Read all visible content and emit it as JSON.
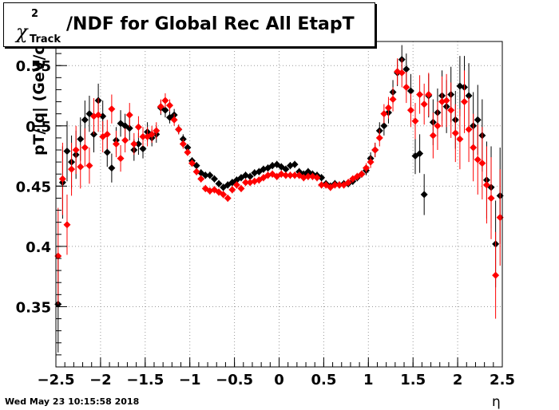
{
  "title": {
    "prefix": "χ",
    "superscript": "2",
    "subscript": "Track",
    "text": "/NDF for Global Rec All EtapT"
  },
  "timestamp": "Wed May 23 10:15:58 2018",
  "chart_data": {
    "type": "scatter",
    "title": "χ2 Track /NDF for Global Rec All EtapT",
    "xlabel": "η",
    "ylabel": "pT/|q| (GeV/c",
    "xlim": [
      -2.5,
      2.5
    ],
    "ylim": [
      0.3,
      0.57
    ],
    "grid": true,
    "x_ticks": [
      -2.5,
      -2,
      -1.5,
      -1,
      -0.5,
      0,
      0.5,
      1,
      1.5,
      2,
      2.5
    ],
    "x_tick_labels": [
      "−2.5",
      "−2",
      "−1.5",
      "−1",
      "−0.5",
      "0",
      "0.5",
      "1",
      "1.5",
      "2",
      "2.5"
    ],
    "y_ticks": [
      0.35,
      0.4,
      0.45,
      0.5,
      0.55
    ],
    "y_tick_labels": [
      "0.35",
      "0.4",
      "0.45",
      "0.5",
      "0.55"
    ],
    "series": [
      {
        "color": "#000000",
        "x": [
          -2.475,
          -2.425,
          -2.375,
          -2.325,
          -2.275,
          -2.225,
          -2.175,
          -2.125,
          -2.075,
          -2.025,
          -1.975,
          -1.925,
          -1.875,
          -1.825,
          -1.775,
          -1.725,
          -1.675,
          -1.625,
          -1.575,
          -1.525,
          -1.475,
          -1.425,
          -1.375,
          -1.325,
          -1.275,
          -1.225,
          -1.175,
          -1.125,
          -1.075,
          -1.025,
          -0.975,
          -0.925,
          -0.875,
          -0.825,
          -0.775,
          -0.725,
          -0.675,
          -0.625,
          -0.575,
          -0.525,
          -0.475,
          -0.425,
          -0.375,
          -0.325,
          -0.275,
          -0.225,
          -0.175,
          -0.125,
          -0.075,
          -0.025,
          0.025,
          0.075,
          0.125,
          0.175,
          0.225,
          0.275,
          0.325,
          0.375,
          0.425,
          0.475,
          0.525,
          0.575,
          0.625,
          0.675,
          0.725,
          0.775,
          0.825,
          0.875,
          0.925,
          0.975,
          1.025,
          1.075,
          1.125,
          1.175,
          1.225,
          1.275,
          1.325,
          1.375,
          1.425,
          1.475,
          1.525,
          1.575,
          1.625,
          1.675,
          1.725,
          1.775,
          1.825,
          1.875,
          1.925,
          1.975,
          2.025,
          2.075,
          2.125,
          2.175,
          2.225,
          2.275,
          2.325,
          2.375,
          2.425,
          2.475
        ],
        "y": [
          0.352,
          0.453,
          0.479,
          0.47,
          0.476,
          0.489,
          0.505,
          0.51,
          0.493,
          0.521,
          0.508,
          0.478,
          0.465,
          0.488,
          0.502,
          0.5,
          0.498,
          0.48,
          0.485,
          0.481,
          0.495,
          0.49,
          0.493,
          0.515,
          0.513,
          0.507,
          0.509,
          0.497,
          0.489,
          0.482,
          0.471,
          0.467,
          0.461,
          0.459,
          0.459,
          0.456,
          0.452,
          0.449,
          0.451,
          0.453,
          0.455,
          0.457,
          0.459,
          0.458,
          0.461,
          0.462,
          0.464,
          0.465,
          0.467,
          0.468,
          0.466,
          0.464,
          0.467,
          0.468,
          0.462,
          0.46,
          0.462,
          0.46,
          0.459,
          0.457,
          0.452,
          0.45,
          0.452,
          0.451,
          0.452,
          0.452,
          0.454,
          0.457,
          0.46,
          0.463,
          0.473,
          0.48,
          0.496,
          0.5,
          0.511,
          0.528,
          0.544,
          0.555,
          0.547,
          0.529,
          0.475,
          0.477,
          0.443,
          0.525,
          0.503,
          0.511,
          0.525,
          0.516,
          0.526,
          0.505,
          0.533,
          0.532,
          0.525,
          0.5,
          0.505,
          0.492,
          0.455,
          0.449,
          0.402,
          0.442
        ],
        "err": [
          0.04,
          0.03,
          0.025,
          0.022,
          0.02,
          0.018,
          0.016,
          0.015,
          0.015,
          0.014,
          0.013,
          0.012,
          0.012,
          0.011,
          0.011,
          0.01,
          0.01,
          0.009,
          0.009,
          0.008,
          0.008,
          0.007,
          0.007,
          0.006,
          0.006,
          0.005,
          0.005,
          0.004,
          0.004,
          0.003,
          0.003,
          0.003,
          0.003,
          0.003,
          0.003,
          0.003,
          0.003,
          0.003,
          0.003,
          0.003,
          0.003,
          0.003,
          0.003,
          0.003,
          0.003,
          0.003,
          0.003,
          0.003,
          0.003,
          0.003,
          0.003,
          0.003,
          0.003,
          0.003,
          0.003,
          0.003,
          0.003,
          0.003,
          0.003,
          0.003,
          0.003,
          0.003,
          0.003,
          0.003,
          0.003,
          0.003,
          0.003,
          0.003,
          0.003,
          0.004,
          0.005,
          0.006,
          0.007,
          0.008,
          0.009,
          0.01,
          0.011,
          0.012,
          0.013,
          0.014,
          0.015,
          0.016,
          0.017,
          0.018,
          0.019,
          0.02,
          0.021,
          0.022,
          0.023,
          0.024,
          0.025,
          0.026,
          0.027,
          0.028,
          0.029,
          0.03,
          0.032,
          0.034,
          0.036,
          0.04
        ]
      },
      {
        "color": "#ff0000",
        "x": [
          -2.475,
          -2.425,
          -2.375,
          -2.325,
          -2.275,
          -2.225,
          -2.175,
          -2.125,
          -2.075,
          -2.025,
          -1.975,
          -1.925,
          -1.875,
          -1.825,
          -1.775,
          -1.725,
          -1.675,
          -1.625,
          -1.575,
          -1.525,
          -1.475,
          -1.425,
          -1.375,
          -1.325,
          -1.275,
          -1.225,
          -1.175,
          -1.125,
          -1.075,
          -1.025,
          -0.975,
          -0.925,
          -0.875,
          -0.825,
          -0.775,
          -0.725,
          -0.675,
          -0.625,
          -0.575,
          -0.525,
          -0.475,
          -0.425,
          -0.375,
          -0.325,
          -0.275,
          -0.225,
          -0.175,
          -0.125,
          -0.075,
          -0.025,
          0.025,
          0.075,
          0.125,
          0.175,
          0.225,
          0.275,
          0.325,
          0.375,
          0.425,
          0.475,
          0.525,
          0.575,
          0.625,
          0.675,
          0.725,
          0.775,
          0.825,
          0.875,
          0.925,
          0.975,
          1.025,
          1.075,
          1.125,
          1.175,
          1.225,
          1.275,
          1.325,
          1.375,
          1.425,
          1.475,
          1.525,
          1.575,
          1.625,
          1.675,
          1.725,
          1.775,
          1.825,
          1.875,
          1.925,
          1.975,
          2.025,
          2.075,
          2.125,
          2.175,
          2.225,
          2.275,
          2.325,
          2.375,
          2.425,
          2.475
        ],
        "y": [
          0.392,
          0.456,
          0.418,
          0.464,
          0.48,
          0.466,
          0.482,
          0.467,
          0.508,
          0.509,
          0.491,
          0.493,
          0.514,
          0.485,
          0.473,
          0.488,
          0.509,
          0.485,
          0.499,
          0.491,
          0.491,
          0.493,
          0.496,
          0.516,
          0.521,
          0.517,
          0.505,
          0.497,
          0.485,
          0.478,
          0.469,
          0.462,
          0.456,
          0.448,
          0.446,
          0.447,
          0.445,
          0.443,
          0.44,
          0.447,
          0.451,
          0.448,
          0.453,
          0.453,
          0.454,
          0.455,
          0.457,
          0.459,
          0.46,
          0.458,
          0.46,
          0.459,
          0.459,
          0.459,
          0.459,
          0.457,
          0.458,
          0.458,
          0.457,
          0.451,
          0.451,
          0.449,
          0.451,
          0.451,
          0.451,
          0.453,
          0.456,
          0.458,
          0.46,
          0.465,
          0.47,
          0.48,
          0.49,
          0.51,
          0.515,
          0.522,
          0.545,
          0.544,
          0.532,
          0.513,
          0.504,
          0.526,
          0.518,
          0.526,
          0.492,
          0.5,
          0.52,
          0.521,
          0.513,
          0.494,
          0.489,
          0.52,
          0.497,
          0.482,
          0.472,
          0.469,
          0.451,
          0.44,
          0.376,
          0.424
        ],
        "err": [
          0.04,
          0.03,
          0.025,
          0.022,
          0.02,
          0.018,
          0.016,
          0.015,
          0.015,
          0.014,
          0.013,
          0.012,
          0.012,
          0.011,
          0.011,
          0.01,
          0.01,
          0.009,
          0.009,
          0.008,
          0.008,
          0.007,
          0.007,
          0.006,
          0.006,
          0.005,
          0.005,
          0.004,
          0.004,
          0.003,
          0.003,
          0.003,
          0.003,
          0.003,
          0.003,
          0.003,
          0.003,
          0.003,
          0.003,
          0.003,
          0.003,
          0.003,
          0.003,
          0.003,
          0.003,
          0.003,
          0.003,
          0.003,
          0.003,
          0.003,
          0.003,
          0.003,
          0.003,
          0.003,
          0.003,
          0.003,
          0.003,
          0.003,
          0.003,
          0.003,
          0.003,
          0.003,
          0.003,
          0.003,
          0.003,
          0.003,
          0.003,
          0.003,
          0.003,
          0.004,
          0.005,
          0.006,
          0.007,
          0.008,
          0.009,
          0.01,
          0.011,
          0.012,
          0.013,
          0.014,
          0.015,
          0.016,
          0.017,
          0.018,
          0.019,
          0.02,
          0.021,
          0.022,
          0.023,
          0.024,
          0.025,
          0.026,
          0.027,
          0.028,
          0.029,
          0.03,
          0.032,
          0.034,
          0.036,
          0.04
        ]
      }
    ]
  }
}
